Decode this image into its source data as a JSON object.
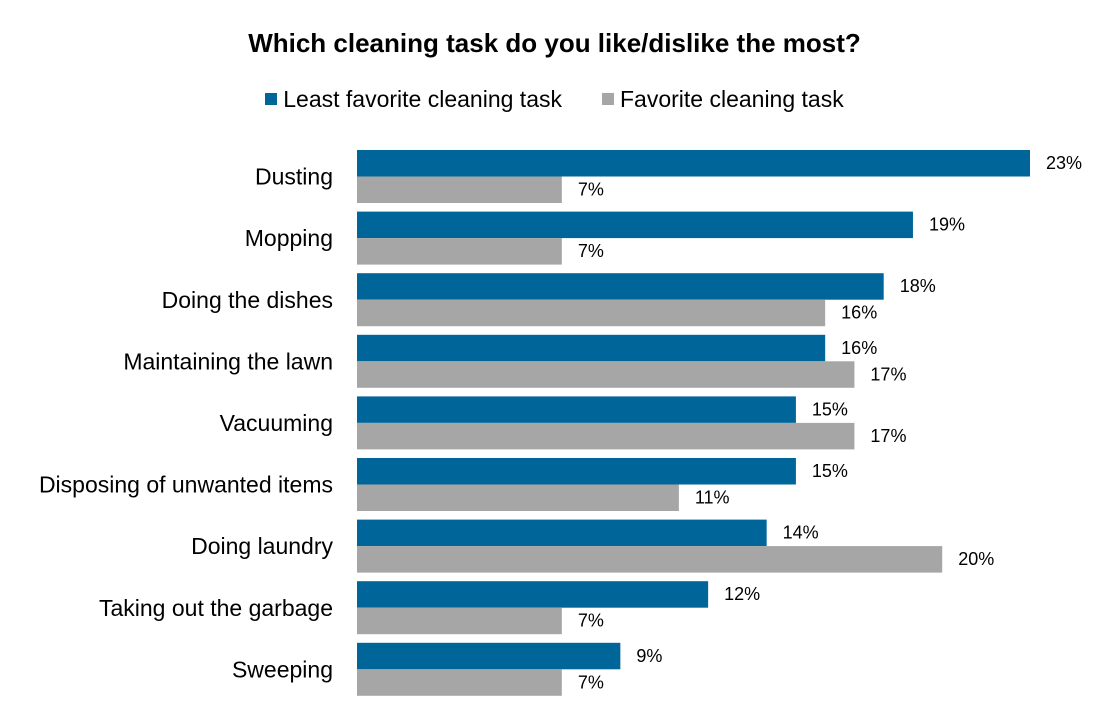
{
  "chart_data": {
    "type": "bar",
    "orientation": "horizontal",
    "title": "Which cleaning task do you like/dislike the most?",
    "xlabel": "",
    "ylabel": "",
    "xlim": [
      0,
      23
    ],
    "grid": false,
    "legend_position": "top-center",
    "value_suffix": "%",
    "categories": [
      "Dusting",
      "Mopping",
      "Doing the dishes",
      "Maintaining the lawn",
      "Vacuuming",
      "Disposing of unwanted items",
      "Doing laundry",
      "Taking out the garbage",
      "Sweeping"
    ],
    "series": [
      {
        "name": "Least favorite cleaning task",
        "color": "#006699",
        "values": [
          23,
          19,
          18,
          16,
          15,
          15,
          14,
          12,
          9
        ]
      },
      {
        "name": "Favorite cleaning task",
        "color": "#a6a6a6",
        "values": [
          7,
          7,
          16,
          17,
          17,
          11,
          20,
          7,
          7
        ]
      }
    ]
  }
}
